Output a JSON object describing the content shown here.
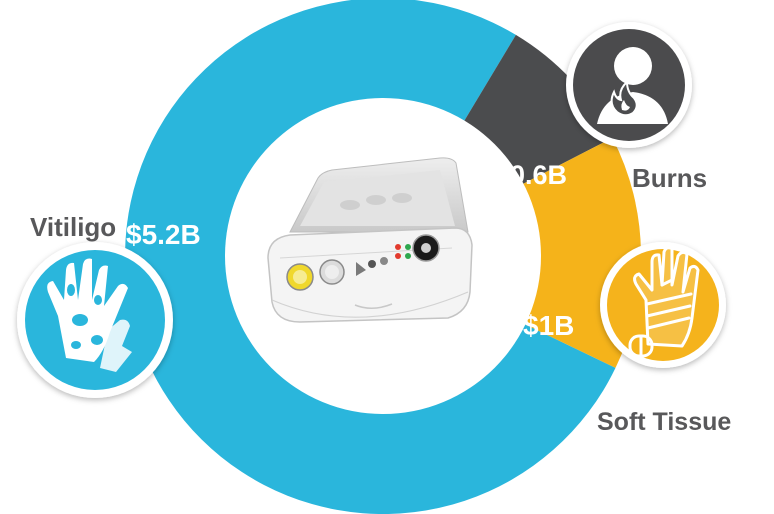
{
  "chart_data": {
    "type": "pie",
    "title": "",
    "categories": [
      "Vitiligo",
      "Burns",
      "Soft Tissue"
    ],
    "values": [
      5.2,
      0.6,
      1.0
    ],
    "value_labels": [
      "$5.2B",
      "$0.6B",
      "$1B"
    ],
    "unit": "$B",
    "donut": true,
    "legend": "none"
  },
  "colors": {
    "vitiligo": "#2ab6dc",
    "burns": "#4b4c4e",
    "soft_tissue": "#f5b31a",
    "value_text_on_color": "#ffffff",
    "category_text": "#58585a"
  },
  "icons": {
    "vitiligo": "spotted-hand-icon",
    "burns": "person-burn-icon",
    "soft_tissue": "bandaged-hand-icon",
    "center": "device-case-image"
  }
}
